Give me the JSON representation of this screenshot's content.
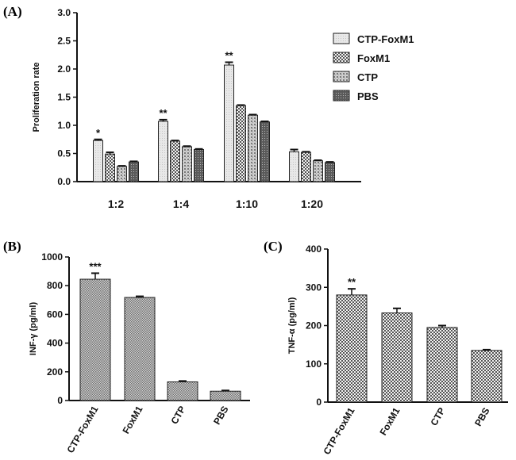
{
  "chart_data": [
    {
      "panel_label": "(A)",
      "type": "bar",
      "ylabel": "Proliferation rate",
      "ylim": [
        0,
        3.0
      ],
      "yticks": [
        "0.0",
        "0.5",
        "1.0",
        "1.5",
        "2.0",
        "2.5",
        "3.0"
      ],
      "categories": [
        "1:2",
        "1:4",
        "1:10",
        "1:20"
      ],
      "series": [
        {
          "name": "CTP-FoxM1",
          "pattern": "light",
          "values": [
            0.73,
            1.07,
            2.07,
            0.53
          ],
          "errors": [
            0.02,
            0.03,
            0.05,
            0.04
          ]
        },
        {
          "name": "FoxM1",
          "pattern": "check",
          "values": [
            0.49,
            0.72,
            1.35,
            0.52
          ],
          "errors": [
            0.03,
            0.01,
            0.01,
            0.01
          ]
        },
        {
          "name": "CTP",
          "pattern": "dot",
          "values": [
            0.27,
            0.62,
            1.18,
            0.37
          ],
          "errors": [
            0.01,
            0.01,
            0.01,
            0.01
          ]
        },
        {
          "name": "PBS",
          "pattern": "dark",
          "values": [
            0.35,
            0.57,
            1.06,
            0.34
          ],
          "errors": [
            0.01,
            0.01,
            0.01,
            0.01
          ]
        }
      ],
      "annotations": [
        "*",
        "**",
        "**",
        ""
      ],
      "legend": "top-right"
    },
    {
      "panel_label": "(B)",
      "type": "bar",
      "ylabel": "INF-γ (pg/ml)",
      "ylim": [
        0,
        1000
      ],
      "yticks": [
        "0",
        "200",
        "400",
        "600",
        "800",
        "1000"
      ],
      "categories": [
        "CTP-FoxM1",
        "FoxM1",
        "CTP",
        "PBS"
      ],
      "values": [
        845,
        718,
        130,
        65
      ],
      "errors": [
        42,
        8,
        6,
        5
      ],
      "annotations": [
        "***",
        "",
        "",
        ""
      ]
    },
    {
      "panel_label": "(C)",
      "type": "bar",
      "ylabel": "TNF-α (pg/ml)",
      "ylim": [
        0,
        400
      ],
      "yticks": [
        "0",
        "100",
        "200",
        "300",
        "400"
      ],
      "categories": [
        "CTP-FoxM1",
        "FoxM1",
        "CTP",
        "PBS"
      ],
      "values": [
        280,
        233,
        195,
        135
      ],
      "errors": [
        16,
        12,
        5,
        2
      ],
      "annotations": [
        "**",
        "",
        "",
        ""
      ]
    }
  ]
}
